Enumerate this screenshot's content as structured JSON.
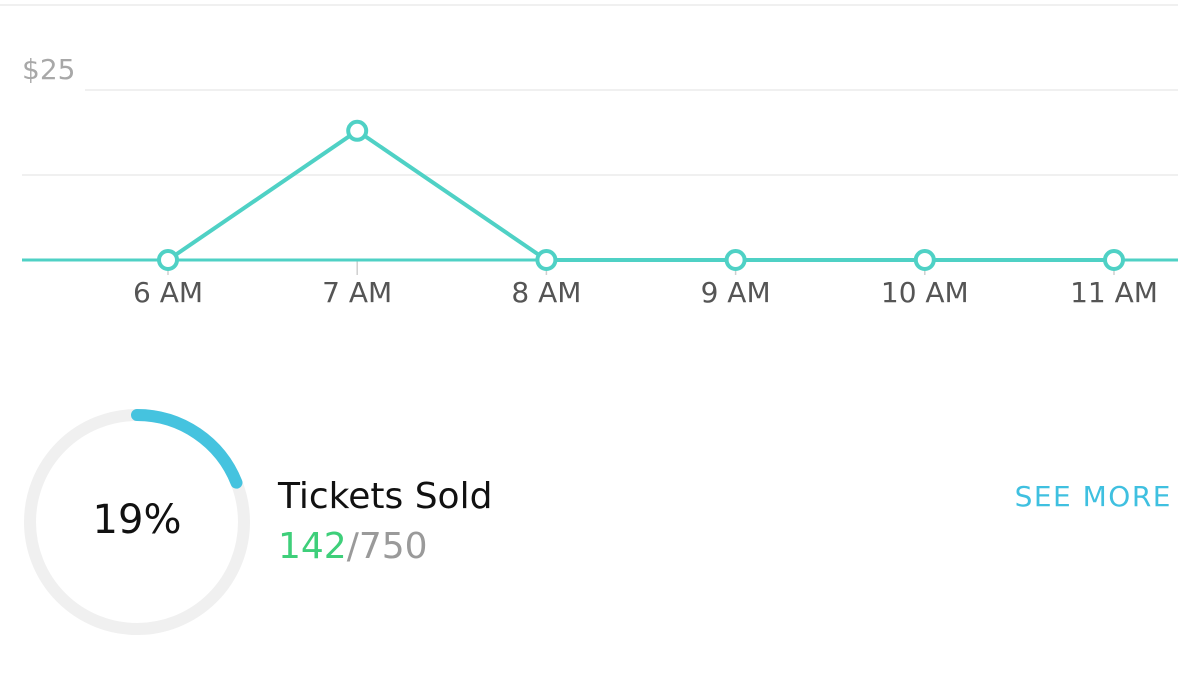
{
  "chart_data": {
    "type": "line",
    "categories": [
      "6 AM",
      "7 AM",
      "8 AM",
      "9 AM",
      "10 AM",
      "11 AM"
    ],
    "values": [
      0,
      19,
      0,
      0,
      0,
      0
    ],
    "color": "#4fd1c5",
    "ylim": [
      0,
      37.5
    ],
    "yticks": [
      {
        "value": 25,
        "label": "$25"
      }
    ],
    "grid": true
  },
  "tickets": {
    "title": "Tickets Sold",
    "percent": 19,
    "percent_label": "19%",
    "sold": 142,
    "separator": "/",
    "total": 750,
    "link": "SEE MORE"
  }
}
